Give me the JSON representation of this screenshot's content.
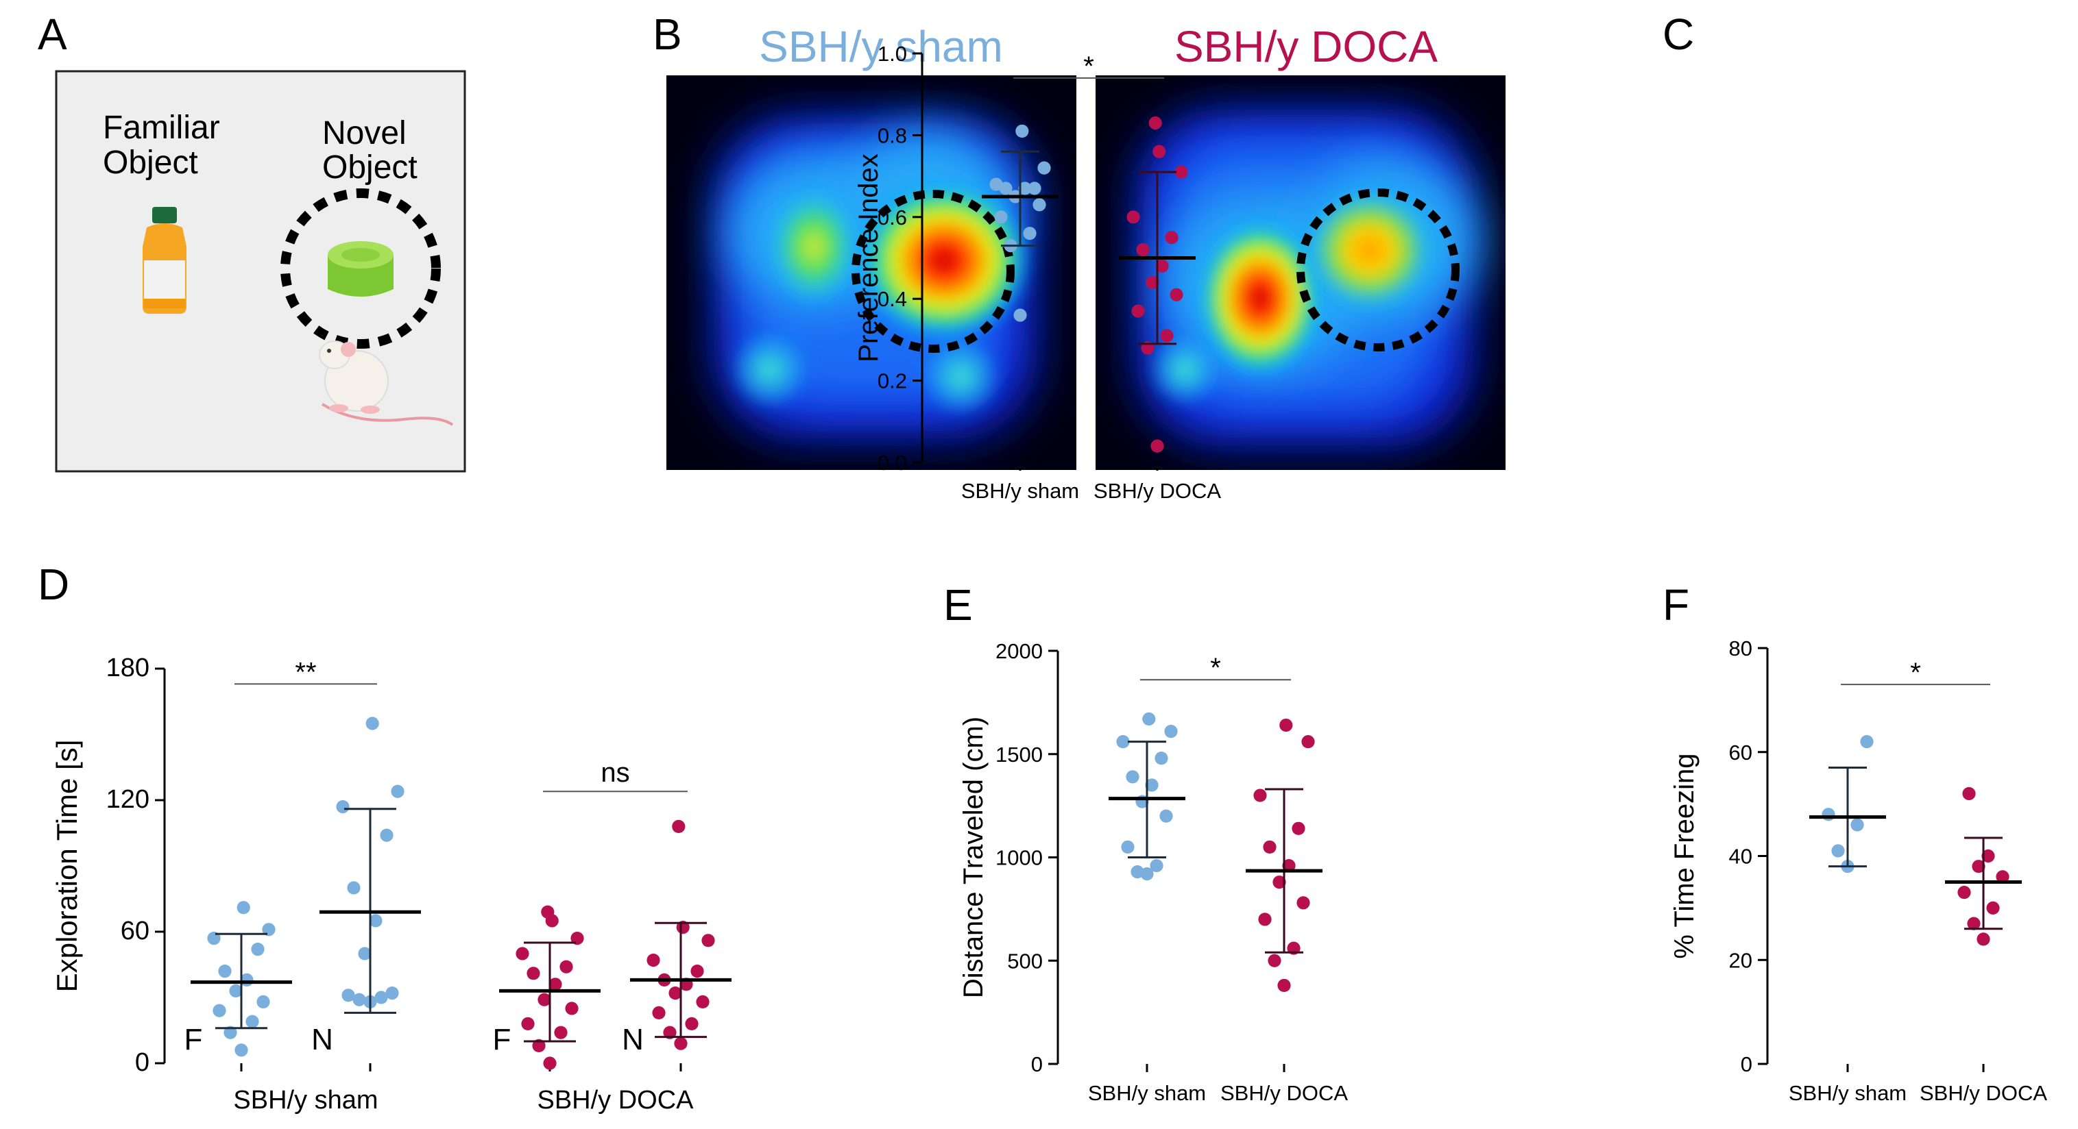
{
  "colors": {
    "sham": "#7aaedc",
    "doca": "#b8104e"
  },
  "panel_labels": {
    "a": "A",
    "b": "B",
    "c": "C",
    "d": "D",
    "e": "E",
    "f": "F"
  },
  "panel_a": {
    "familiar_l1": "Familiar",
    "familiar_l2": "Object",
    "novel_l1": "Novel",
    "novel_l2": "Object"
  },
  "panel_b": {
    "title_sham": "SBH/y sham",
    "title_doca": "SBH/y DOCA"
  },
  "chart_data": [
    {
      "panel": "C",
      "type": "scatter",
      "ylabel": "Preference Index",
      "ylim": [
        0,
        1.0
      ],
      "yticks": [
        "0.0",
        "0.2",
        "0.4",
        "0.6",
        "0.8",
        "1.0"
      ],
      "categories": [
        "SBH/y sham",
        "SBH/y DOCA"
      ],
      "series": [
        {
          "name": "SBH/y sham",
          "values": [
            0.36,
            0.53,
            0.56,
            0.6,
            0.63,
            0.65,
            0.67,
            0.67,
            0.67,
            0.68,
            0.72,
            0.81
          ],
          "mean": 0.65,
          "sd_low": 0.53,
          "sd_high": 0.76
        },
        {
          "name": "SBH/y DOCA",
          "values": [
            0.04,
            0.28,
            0.31,
            0.37,
            0.41,
            0.44,
            0.48,
            0.52,
            0.55,
            0.6,
            0.71,
            0.76,
            0.83
          ],
          "mean": 0.5,
          "sd_low": 0.29,
          "sd_high": 0.71
        }
      ],
      "annotations": [
        {
          "label": "*",
          "between": [
            0,
            1
          ],
          "y": 0.94
        }
      ]
    },
    {
      "panel": "D",
      "type": "scatter",
      "ylabel": "Exploration Time [s]",
      "ylim": [
        0,
        180
      ],
      "yticks": [
        "0",
        "60",
        "120",
        "180"
      ],
      "groups": [
        "SBH/y sham",
        "SBH/y DOCA"
      ],
      "sublabels": [
        "F",
        "N",
        "F",
        "N"
      ],
      "series": [
        {
          "name": "SBH/y sham F",
          "values": [
            6,
            14,
            19,
            24,
            28,
            33,
            38,
            42,
            52,
            57,
            61,
            71
          ],
          "mean": 37,
          "sd_low": 16,
          "sd_high": 59
        },
        {
          "name": "SBH/y sham N",
          "values": [
            28,
            29,
            30,
            31,
            32,
            50,
            65,
            80,
            104,
            117,
            124,
            155
          ],
          "mean": 69,
          "sd_low": 23,
          "sd_high": 116
        },
        {
          "name": "SBH/y DOCA F",
          "values": [
            0,
            8,
            14,
            18,
            25,
            29,
            36,
            41,
            44,
            50,
            57,
            65,
            69
          ],
          "mean": 33,
          "sd_low": 10,
          "sd_high": 55
        },
        {
          "name": "SBH/y DOCA N",
          "values": [
            9,
            14,
            18,
            23,
            28,
            32,
            36,
            38,
            42,
            47,
            56,
            62,
            108
          ],
          "mean": 38,
          "sd_low": 12,
          "sd_high": 64
        }
      ],
      "annotations": [
        {
          "label": "**",
          "between": [
            0,
            1
          ],
          "y": 173
        },
        {
          "label": "ns",
          "between": [
            2,
            3
          ],
          "y": 124
        }
      ]
    },
    {
      "panel": "E",
      "type": "scatter",
      "ylabel": "Distance Traveled (cm)",
      "ylim": [
        0,
        2000
      ],
      "yticks": [
        "0",
        "500",
        "1000",
        "1500",
        "2000"
      ],
      "categories": [
        "SBH/y sham",
        "SBH/y DOCA"
      ],
      "series": [
        {
          "name": "SBH/y sham",
          "values": [
            920,
            930,
            960,
            1050,
            1200,
            1270,
            1350,
            1390,
            1480,
            1560,
            1610,
            1670
          ],
          "mean": 1285,
          "sd_low": 1000,
          "sd_high": 1560
        },
        {
          "name": "SBH/y DOCA",
          "values": [
            380,
            500,
            560,
            700,
            780,
            880,
            960,
            1050,
            1140,
            1300,
            1560,
            1640
          ],
          "mean": 935,
          "sd_low": 540,
          "sd_high": 1330
        },
        {
          "name": "_",
          "values": []
        }
      ],
      "annotations": [
        {
          "label": "*",
          "between": [
            0,
            1
          ],
          "y": 1860
        }
      ]
    },
    {
      "panel": "F",
      "type": "scatter",
      "ylabel": "% Time Freezing",
      "ylim": [
        0,
        80
      ],
      "yticks": [
        "0",
        "20",
        "40",
        "60",
        "80"
      ],
      "categories": [
        "SBH/y sham",
        "SBH/y DOCA"
      ],
      "series": [
        {
          "name": "SBH/y sham",
          "values": [
            38,
            41,
            46,
            48,
            62
          ],
          "mean": 47.5,
          "sd_low": 38,
          "sd_high": 57
        },
        {
          "name": "SBH/y DOCA",
          "values": [
            24,
            27,
            30,
            33,
            36,
            38,
            40,
            52
          ],
          "mean": 35,
          "sd_low": 26,
          "sd_high": 43.5
        }
      ],
      "annotations": [
        {
          "label": "*",
          "between": [
            0,
            1
          ],
          "y": 73
        }
      ]
    }
  ]
}
